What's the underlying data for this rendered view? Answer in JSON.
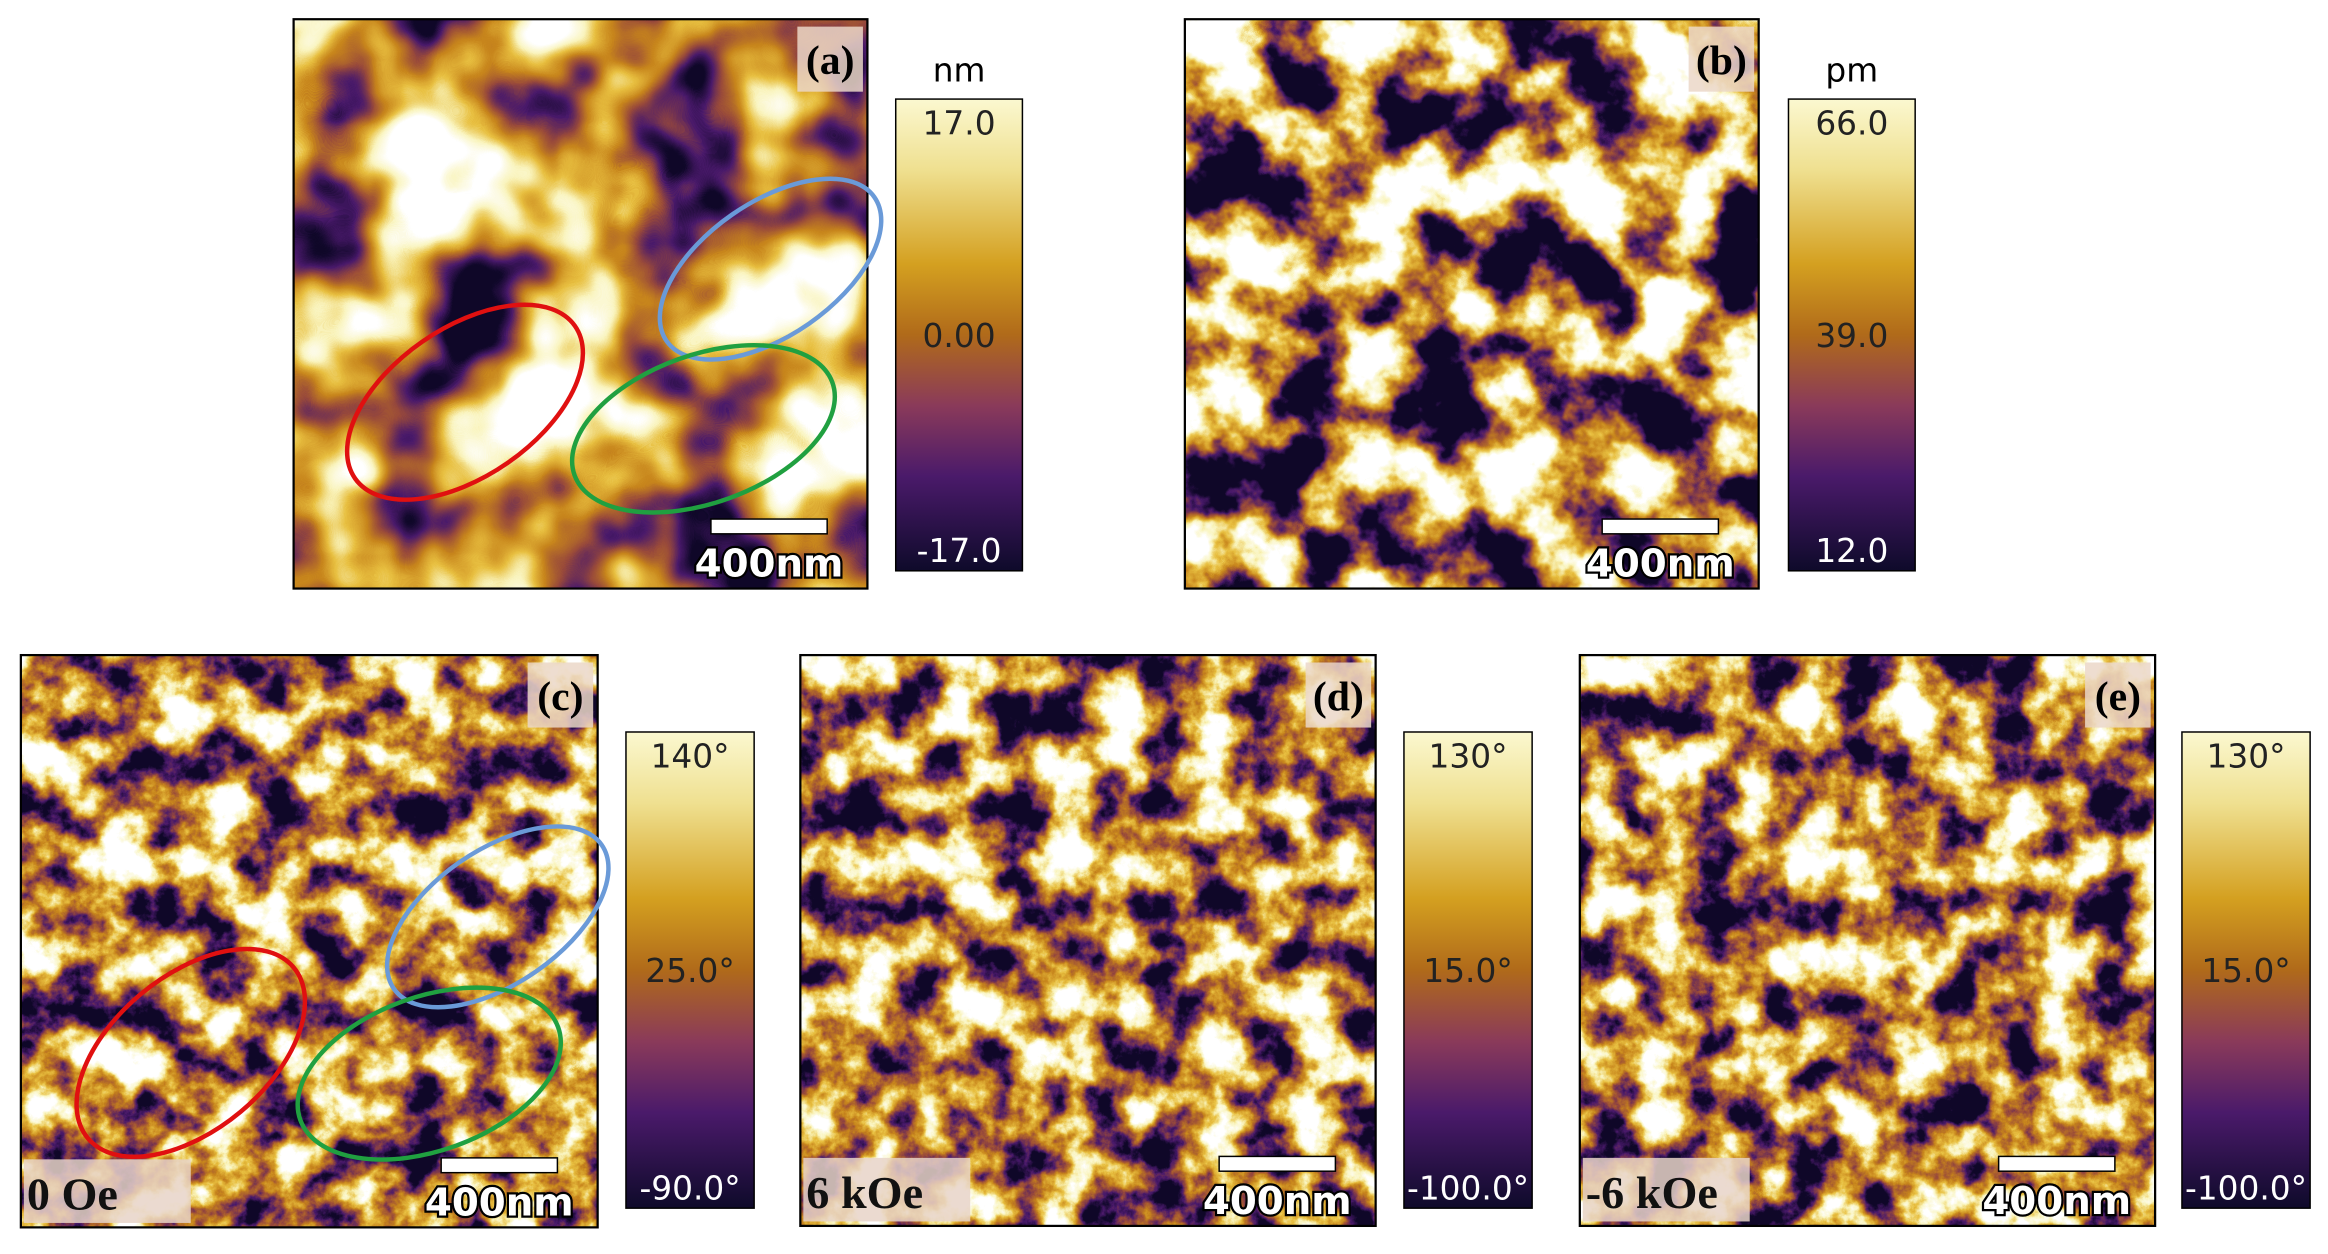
{
  "panels": [
    {
      "label": "(a)",
      "scale_bar": "400nm",
      "colorbar": {
        "unit": "nm",
        "ticks": [
          "17.0",
          "0.00",
          "-17.0"
        ]
      }
    },
    {
      "label": "(b)",
      "scale_bar": "400nm",
      "colorbar": {
        "unit": "pm",
        "ticks": [
          "66.0",
          "39.0",
          "12.0"
        ]
      }
    },
    {
      "label": "(c)",
      "scale_bar": "400nm",
      "field": "0 Oe",
      "colorbar": {
        "ticks": [
          "140°",
          "25.0°",
          "-90.0°"
        ]
      }
    },
    {
      "label": "(d)",
      "scale_bar": "400nm",
      "field": "6 kOe",
      "colorbar": {
        "ticks": [
          "130°",
          "15.0°",
          "-100.0°"
        ]
      }
    },
    {
      "label": "(e)",
      "scale_bar": "400nm",
      "field": "-6 kOe",
      "colorbar": {
        "ticks": [
          "130°",
          "15.0°",
          "-100.0°"
        ]
      }
    }
  ]
}
